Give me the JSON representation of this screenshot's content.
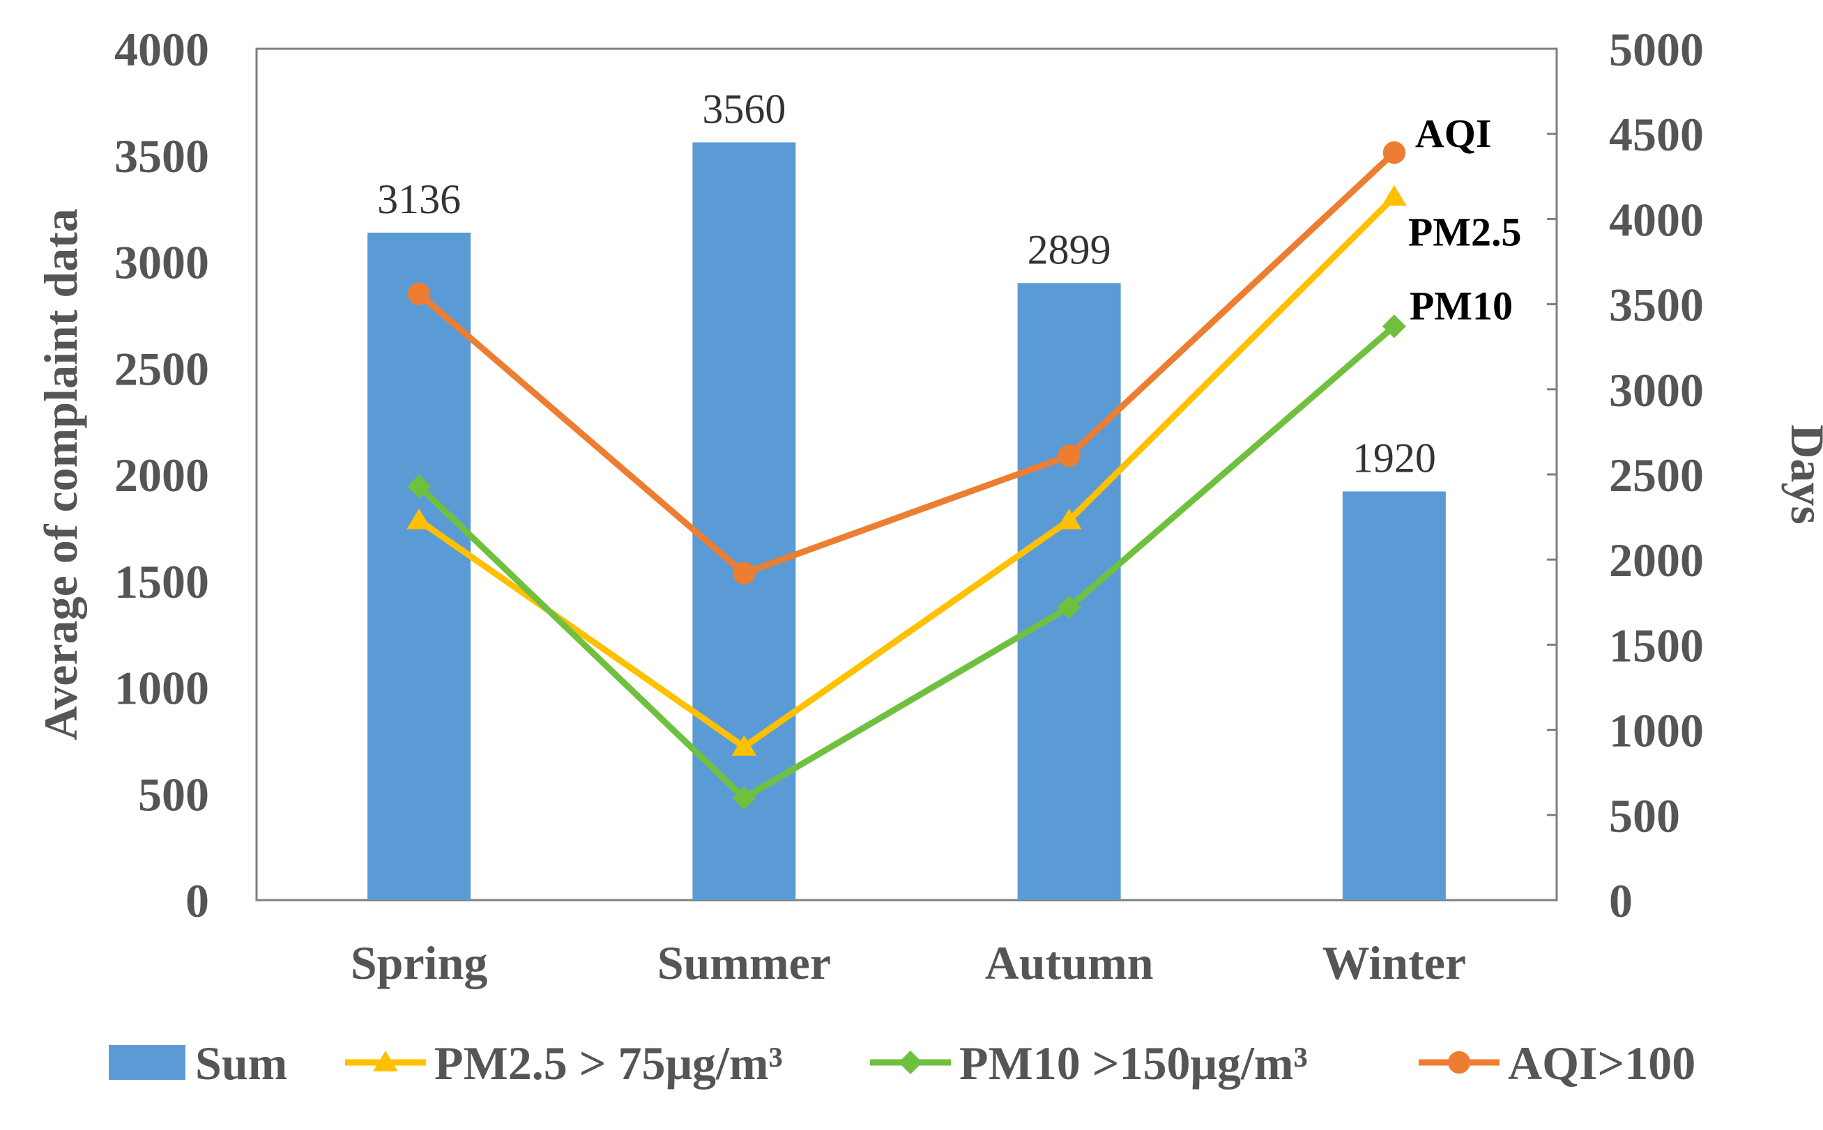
{
  "chart_data": {
    "type": "bar",
    "categories": [
      "Spring",
      "Summer",
      "Autumn",
      "Winter"
    ],
    "bar_series": {
      "name": "Sum",
      "values": [
        3136,
        3560,
        2899,
        1920
      ],
      "data_labels": [
        "3136",
        "3560",
        "2899",
        "1920"
      ],
      "color": "#5b9bd5",
      "axis": "left"
    },
    "line_series": [
      {
        "name": "PM2.5 > 75μg/m³",
        "short_label": "PM2.5",
        "values": [
          2230,
          900,
          2230,
          4130
        ],
        "color": "#ffc000",
        "marker": "triangle",
        "axis": "right"
      },
      {
        "name": "PM10 >150μg/m³",
        "short_label": "PM10",
        "values": [
          2430,
          600,
          1720,
          3370
        ],
        "color": "#70c040",
        "marker": "diamond",
        "axis": "right"
      },
      {
        "name": "AQI>100",
        "short_label": "AQI",
        "values": [
          3560,
          1920,
          2610,
          4390
        ],
        "color": "#ed7d31",
        "marker": "circle",
        "axis": "right"
      }
    ],
    "left_axis": {
      "title": "Average of complaint data",
      "range": [
        0,
        4000
      ],
      "ticks": [
        "0",
        "500",
        "1000",
        "1500",
        "2000",
        "2500",
        "3000",
        "3500",
        "4000"
      ]
    },
    "right_axis": {
      "title": "Days",
      "range": [
        0,
        5000
      ],
      "ticks": [
        "0",
        "500",
        "1000",
        "1500",
        "2000",
        "2500",
        "3000",
        "3500",
        "4000",
        "4500",
        "5000"
      ]
    },
    "legend": {
      "placement": "bottom",
      "items": [
        "Sum",
        "PM2.5 > 75μg/m³",
        "PM10 >150μg/m³",
        "AQI>100"
      ]
    },
    "grid": false
  }
}
